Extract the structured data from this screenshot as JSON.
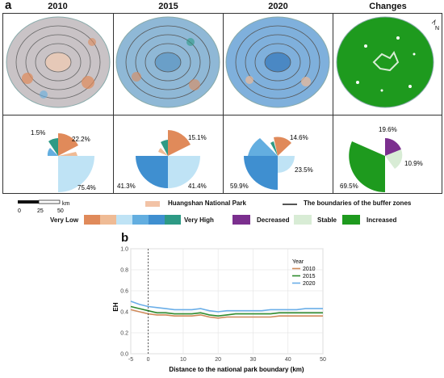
{
  "panel_a": {
    "label": "a",
    "columns": [
      "2010",
      "2015",
      "2020",
      "Changes"
    ],
    "north_label": "N",
    "pies": [
      {
        "column": "2010",
        "labels": [
          "1.5%",
          "22.2%",
          "75.4%"
        ]
      },
      {
        "column": "2015",
        "labels": [
          "15.1%",
          "41.3%",
          "41.4%"
        ]
      },
      {
        "column": "2020",
        "labels": [
          "14.6%",
          "23.5%",
          "59.9%"
        ]
      },
      {
        "column": "Changes",
        "labels": [
          "19.6%",
          "10.9%",
          "69.5%"
        ]
      }
    ],
    "scale_bar": {
      "unit": "km",
      "ticks": [
        "0",
        "25",
        "50"
      ]
    },
    "legend": {
      "park": "Huangshan National Park",
      "buffer": "The boundaries of the buffer zones",
      "very_low": "Very Low",
      "very_high": "Very High",
      "decreased": "Decreased",
      "stable": "Stable",
      "increased": "Increased"
    },
    "colors": {
      "level_1": "#e08a5a",
      "level_2": "#efbb95",
      "level_3": "#bfe3f5",
      "level_4": "#63aee0",
      "level_5": "#3f8fd0",
      "level_6": "#2e9a85",
      "decreased": "#7b2f8e",
      "stable": "#d8ecd5",
      "increased": "#1e9a1e",
      "park": "#f2c3a6"
    }
  },
  "panel_b": {
    "label": "b"
  },
  "chart_data": {
    "type": "line",
    "xlabel": "Distance to the national park boundary (km)",
    "ylabel": "EH",
    "xlim": [
      -5,
      50
    ],
    "ylim": [
      0.0,
      1.0
    ],
    "xticks": [
      -5,
      0,
      10,
      20,
      30,
      40,
      50
    ],
    "yticks": [
      0.0,
      0.2,
      0.4,
      0.6,
      0.8,
      1.0
    ],
    "grid": true,
    "legend_title": "Year",
    "legend_position": "top-right",
    "reference_line_x": 0,
    "x": [
      -5,
      -2.5,
      0,
      2.5,
      5,
      7.5,
      10,
      12.5,
      15,
      17.5,
      20,
      22.5,
      25,
      27.5,
      30,
      32.5,
      35,
      37.5,
      40,
      42.5,
      45,
      47.5,
      50
    ],
    "series": [
      {
        "name": "2010",
        "color": "#d08a5a",
        "values": [
          0.42,
          0.4,
          0.38,
          0.37,
          0.37,
          0.36,
          0.36,
          0.36,
          0.37,
          0.35,
          0.34,
          0.35,
          0.35,
          0.35,
          0.35,
          0.35,
          0.35,
          0.36,
          0.36,
          0.36,
          0.36,
          0.36,
          0.36
        ]
      },
      {
        "name": "2015",
        "color": "#2e8b2e",
        "values": [
          0.45,
          0.43,
          0.41,
          0.39,
          0.39,
          0.38,
          0.38,
          0.38,
          0.39,
          0.37,
          0.36,
          0.37,
          0.38,
          0.38,
          0.38,
          0.38,
          0.38,
          0.39,
          0.39,
          0.39,
          0.39,
          0.39,
          0.39
        ]
      },
      {
        "name": "2020",
        "color": "#6aaee8",
        "values": [
          0.5,
          0.47,
          0.45,
          0.44,
          0.43,
          0.42,
          0.42,
          0.42,
          0.43,
          0.41,
          0.4,
          0.41,
          0.41,
          0.41,
          0.41,
          0.41,
          0.42,
          0.42,
          0.42,
          0.42,
          0.43,
          0.43,
          0.43
        ]
      }
    ]
  }
}
